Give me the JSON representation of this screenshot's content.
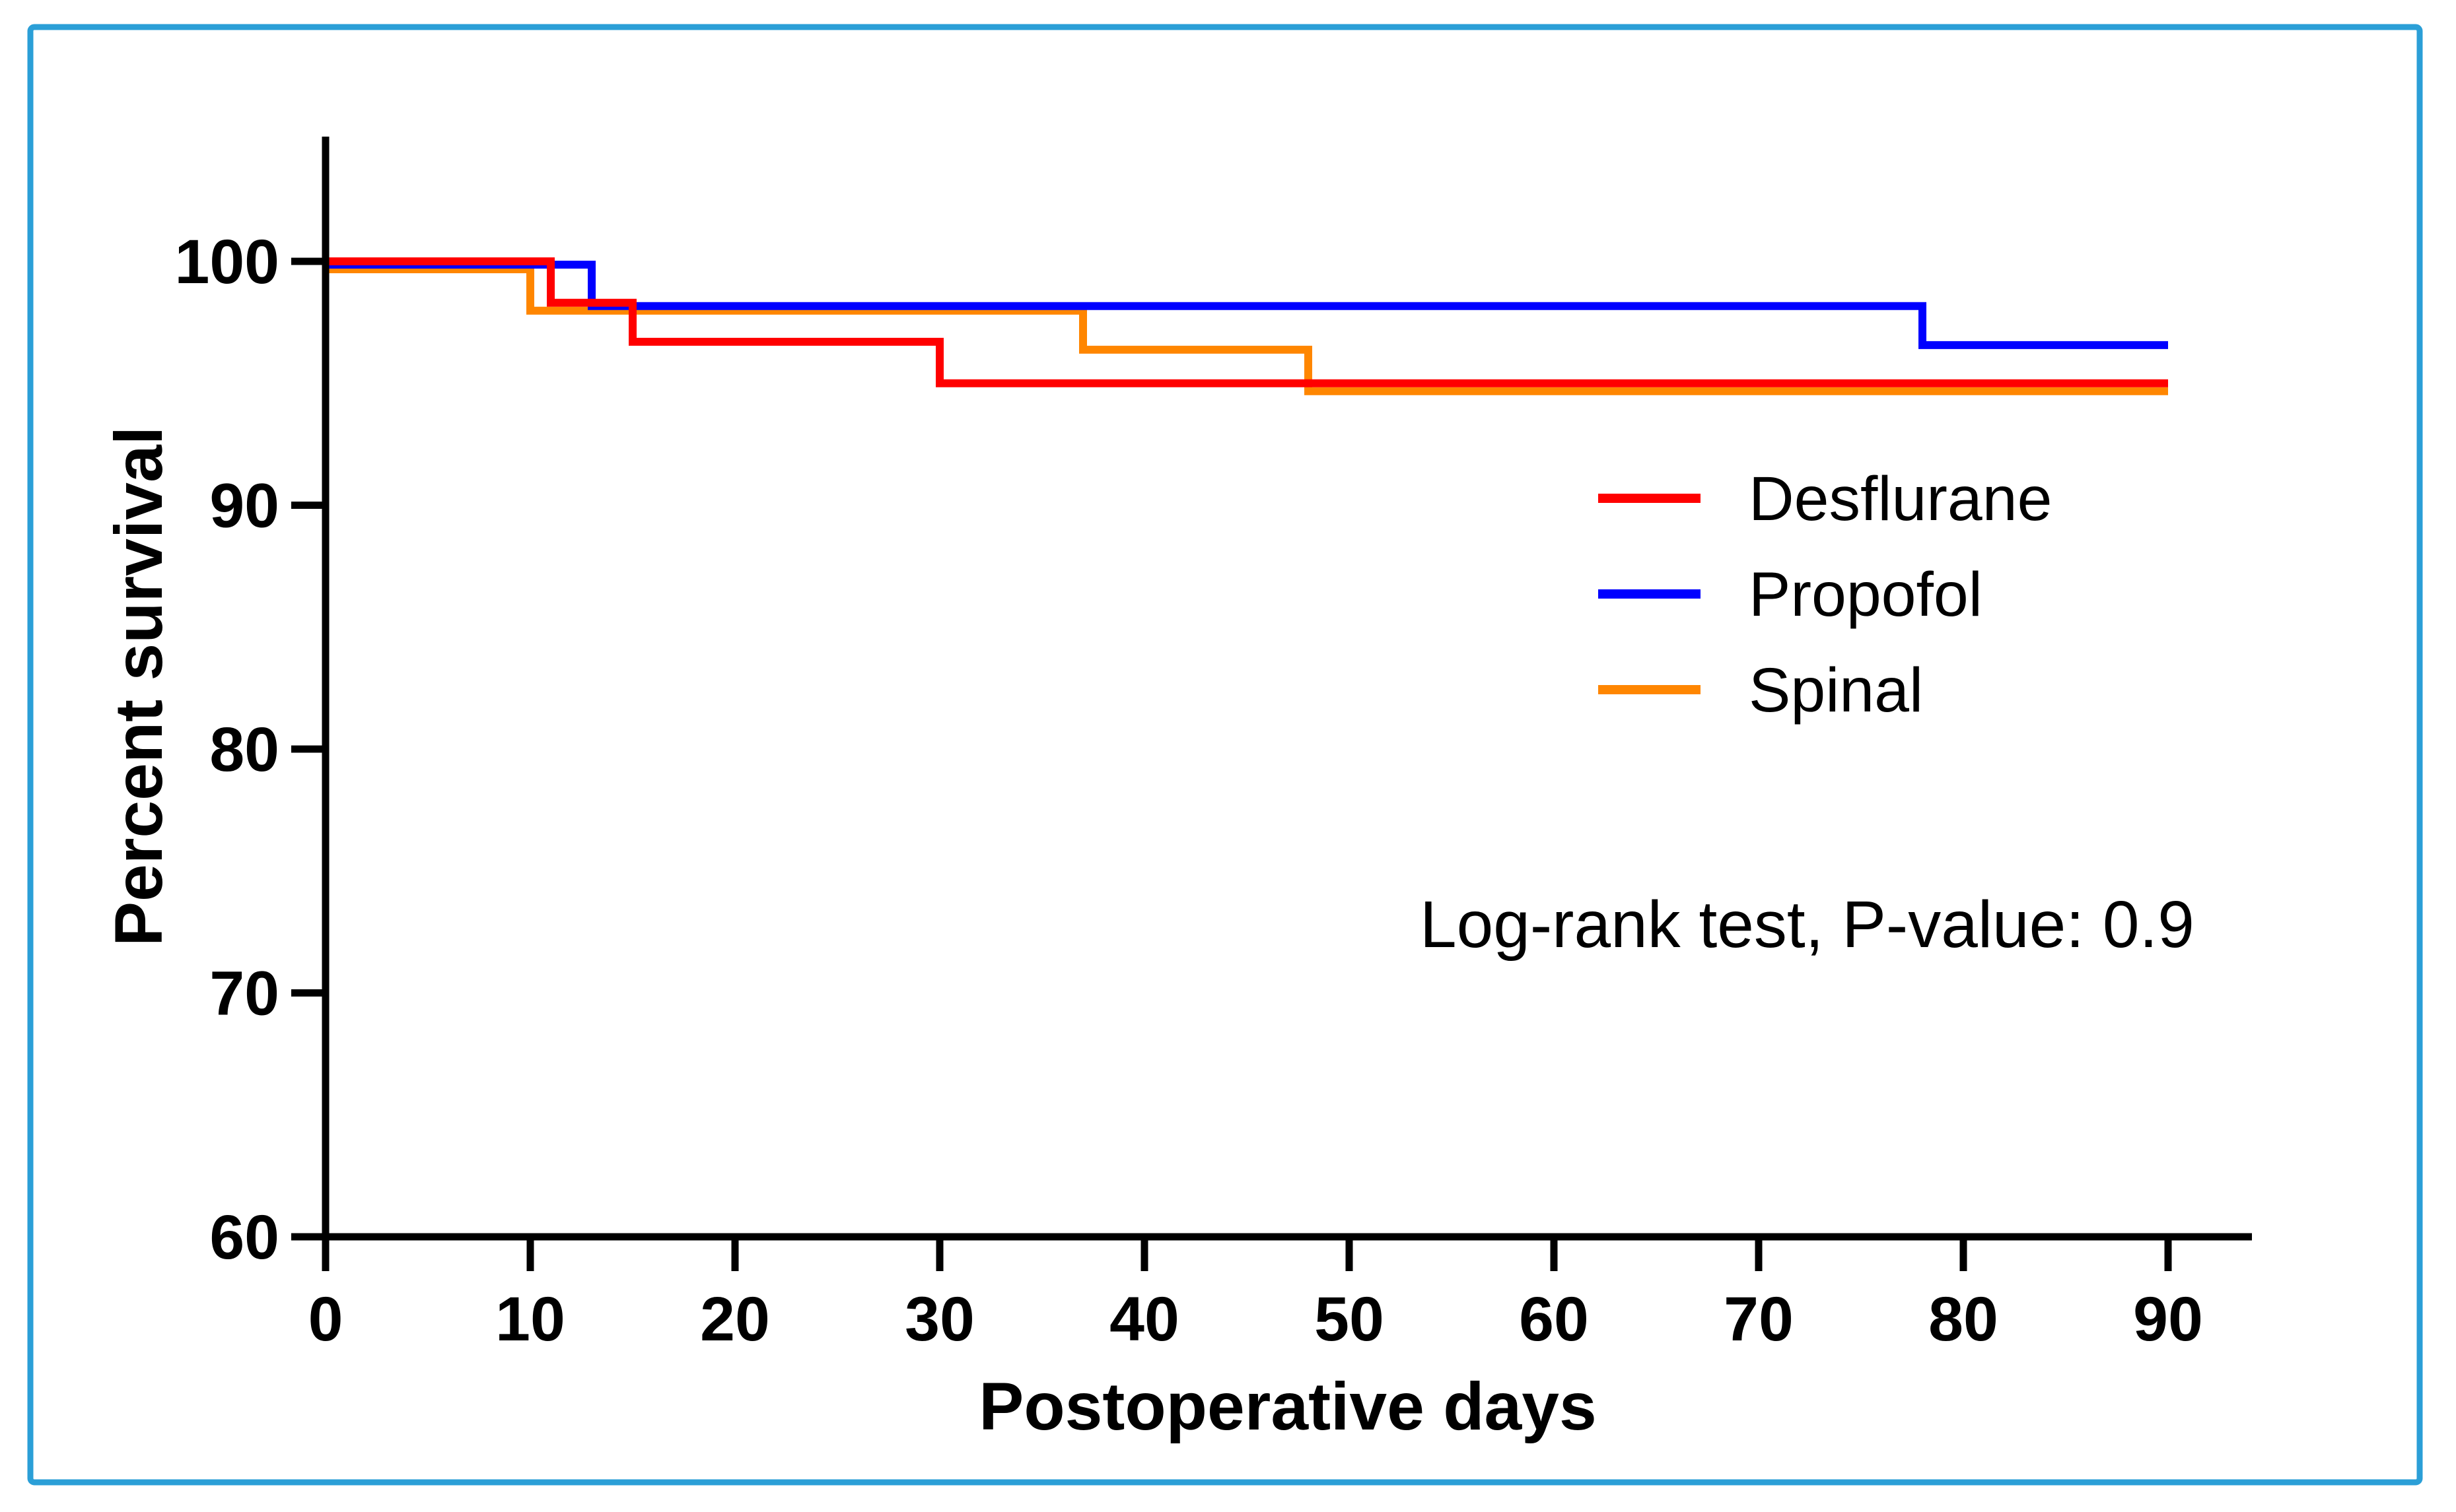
{
  "figure": {
    "background_color": "#FFFFFF",
    "border_color": "#2B9FD7",
    "axis_color": "#000000",
    "text_color": "#000000"
  },
  "chart_data": {
    "type": "line",
    "chart_style": "kaplan-meier-survival-step",
    "title": "",
    "xlabel": "Postoperative days",
    "ylabel": "Percent survival",
    "xlim": [
      0,
      95
    ],
    "ylim": [
      60,
      105
    ],
    "x_ticks": [
      0,
      10,
      20,
      30,
      40,
      50,
      60,
      70,
      80,
      90
    ],
    "y_ticks": [
      100,
      90,
      80,
      70,
      60
    ],
    "grid": false,
    "legend_position": "inside-upper-right",
    "annotation": {
      "text": "Log-rank test, P-value: 0.9",
      "test": "Log-rank test",
      "p_value": "0.9"
    },
    "series": [
      {
        "name": "Desflurane",
        "color": "#FF0000",
        "step_points": [
          [
            0,
            100
          ],
          [
            11,
            100
          ],
          [
            11,
            98.3
          ],
          [
            15,
            98.3
          ],
          [
            15,
            96.7
          ],
          [
            30,
            96.7
          ],
          [
            30,
            95.0
          ],
          [
            90,
            95.0
          ]
        ]
      },
      {
        "name": "Propofol",
        "color": "#0000FF",
        "step_points": [
          [
            0,
            100
          ],
          [
            13,
            100
          ],
          [
            13,
            98.3
          ],
          [
            78,
            98.3
          ],
          [
            78,
            96.7
          ],
          [
            90,
            96.7
          ]
        ]
      },
      {
        "name": "Spinal",
        "color": "#FF8600",
        "step_points": [
          [
            0,
            100
          ],
          [
            10,
            100
          ],
          [
            10,
            98.3
          ],
          [
            37,
            98.3
          ],
          [
            37,
            96.7
          ],
          [
            48,
            96.7
          ],
          [
            48,
            95.0
          ],
          [
            90,
            95.0
          ]
        ]
      }
    ]
  }
}
